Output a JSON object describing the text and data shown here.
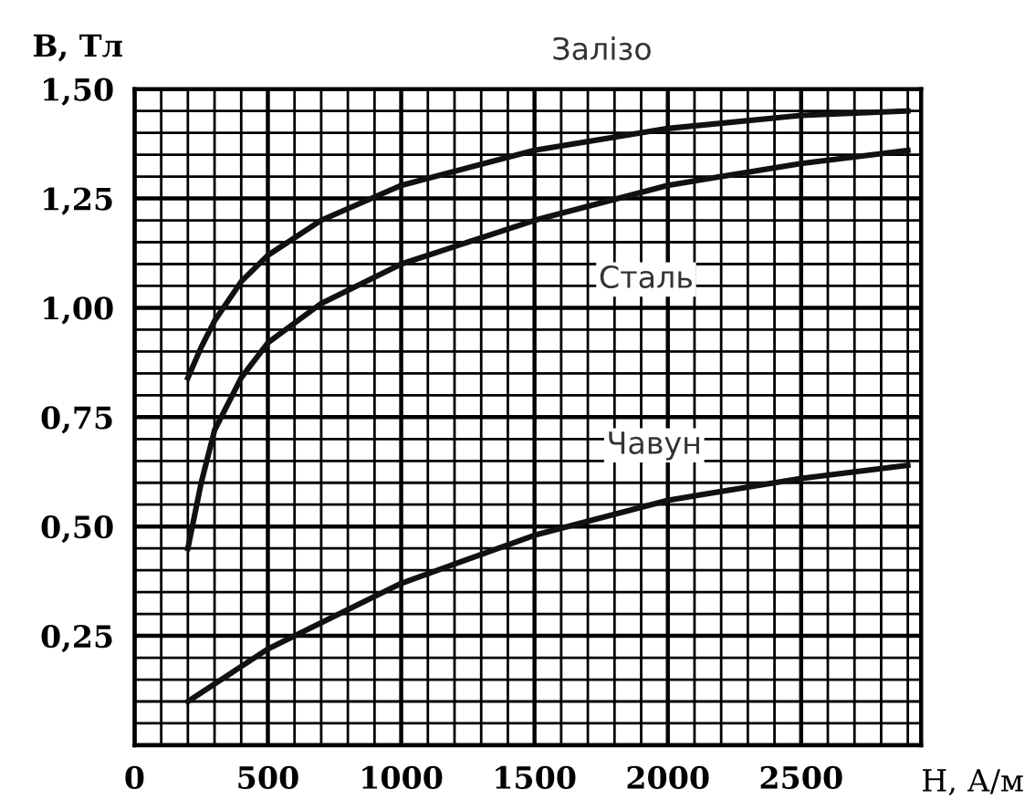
{
  "chart_data": {
    "type": "line",
    "xlabel": "H, А/м",
    "ylabel": "B, Тл",
    "xlim": [
      0,
      2950
    ],
    "ylim": [
      0,
      1.5
    ],
    "xticks": [
      0,
      500,
      1000,
      1500,
      2000,
      2500
    ],
    "yticks": [
      {
        "value": 0.25,
        "label": "0,25"
      },
      {
        "value": 0.5,
        "label": "0,50"
      },
      {
        "value": 0.75,
        "label": "0,75"
      },
      {
        "value": 1.0,
        "label": "1,00"
      },
      {
        "value": 1.25,
        "label": "1,25"
      },
      {
        "value": 1.5,
        "label": "1,50"
      }
    ],
    "grid": true,
    "legend": false,
    "marker": "none",
    "line_style": "solid",
    "series": [
      {
        "name": "Залізо",
        "color": "#111111",
        "x": [
          200,
          250,
          300,
          400,
          500,
          700,
          1000,
          1500,
          2000,
          2500,
          2900
        ],
        "values": [
          0.84,
          0.91,
          0.97,
          1.06,
          1.12,
          1.2,
          1.28,
          1.36,
          1.41,
          1.44,
          1.45
        ]
      },
      {
        "name": "Сталь",
        "color": "#111111",
        "x": [
          200,
          250,
          300,
          400,
          500,
          700,
          1000,
          1500,
          2000,
          2500,
          2900
        ],
        "values": [
          0.45,
          0.6,
          0.72,
          0.84,
          0.92,
          1.01,
          1.1,
          1.2,
          1.28,
          1.33,
          1.36
        ]
      },
      {
        "name": "Чавун",
        "color": "#111111",
        "x": [
          200,
          500,
          1000,
          1500,
          2000,
          2500,
          2900
        ],
        "values": [
          0.1,
          0.22,
          0.37,
          0.48,
          0.56,
          0.61,
          0.64
        ]
      }
    ]
  }
}
